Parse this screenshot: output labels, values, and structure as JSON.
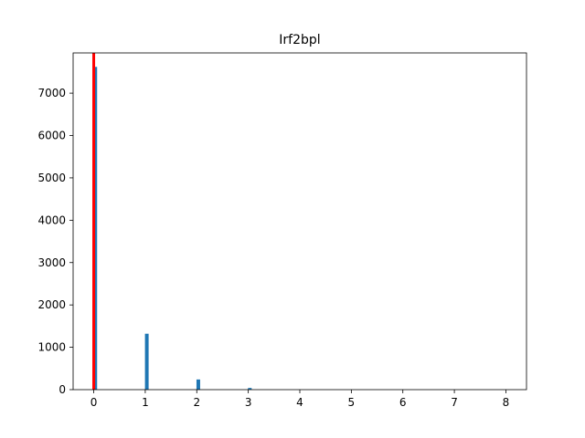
{
  "chart_data": {
    "type": "bar",
    "title": "Irf2bpl",
    "xlabel": "",
    "ylabel": "",
    "xlim": [
      -0.4,
      8.4
    ],
    "ylim": [
      0,
      7950
    ],
    "x": [
      0,
      1,
      2,
      3,
      4,
      5,
      6,
      7,
      8
    ],
    "values": [
      7620,
      1320,
      240,
      40,
      0,
      0,
      0,
      0,
      0
    ],
    "x_ticks": [
      0,
      1,
      2,
      3,
      4,
      5,
      6,
      7,
      8
    ],
    "y_ticks": [
      0,
      1000,
      2000,
      3000,
      4000,
      5000,
      6000,
      7000
    ],
    "bar_color": "#1f77b4",
    "vline": {
      "x": 0,
      "color": "#ff0000"
    },
    "grid": false,
    "legend": "none"
  }
}
